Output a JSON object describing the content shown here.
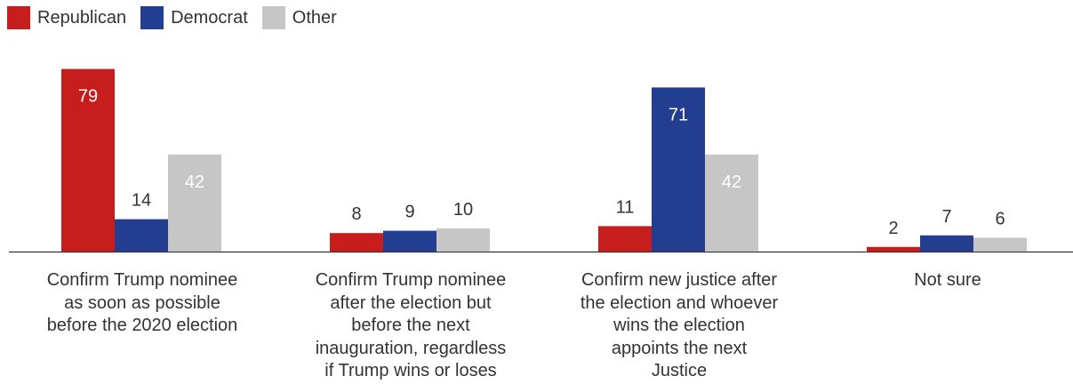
{
  "chart_data": {
    "type": "bar",
    "categories": [
      "Confirm Trump nominee\nas soon as possible\nbefore the 2020 election",
      "Confirm Trump nominee\nafter the election but\nbefore the next\ninauguration, regardless\nif Trump wins or loses",
      "Confirm new justice after\nthe election and whoever\nwins the election\nappoints the next\nJustice",
      "Not sure"
    ],
    "series": [
      {
        "name": "Republican",
        "color": "#c71e1d",
        "values": [
          79,
          8,
          11,
          2
        ]
      },
      {
        "name": "Democrat",
        "color": "#233d91",
        "values": [
          14,
          9,
          71,
          7
        ]
      },
      {
        "name": "Other",
        "color": "#c6c6c6",
        "values": [
          42,
          10,
          42,
          6
        ]
      }
    ],
    "ylim": [
      0,
      80
    ],
    "grid": false,
    "legend_position": "top-left"
  }
}
